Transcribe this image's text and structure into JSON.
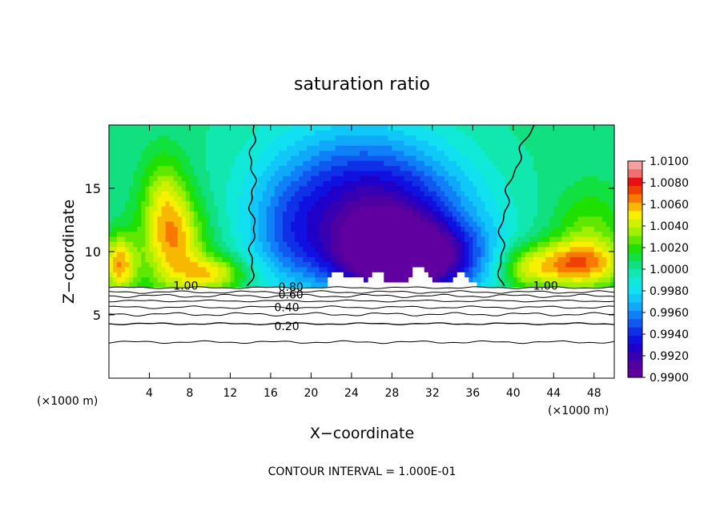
{
  "chart_data": {
    "type": "heatmap",
    "title": "saturation ratio",
    "xlabel": "X−coordinate",
    "ylabel": "Z−coordinate",
    "x_unit_left": "(×1000 m)",
    "x_unit_right": "(×1000 m)",
    "footer": "CONTOUR INTERVAL = 1.000E-01",
    "xlim": [
      0,
      50
    ],
    "ylim": [
      0,
      20
    ],
    "x_ticks": [
      "4",
      "8",
      "12",
      "16",
      "20",
      "24",
      "28",
      "32",
      "36",
      "40",
      "44",
      "48"
    ],
    "x_tick_values": [
      4,
      8,
      12,
      16,
      20,
      24,
      28,
      32,
      36,
      40,
      44,
      48
    ],
    "y_ticks": [
      "5",
      "10",
      "15"
    ],
    "y_tick_values": [
      5,
      10,
      15
    ],
    "colorbar": {
      "min": 0.99,
      "max": 1.01,
      "labels": [
        "1.0100",
        "1.0080",
        "1.0060",
        "1.0040",
        "1.0020",
        "1.0000",
        "0.9980",
        "0.9960",
        "0.9940",
        "0.9920",
        "0.9900"
      ],
      "colors": [
        "#f5a0a0",
        "#f07070",
        "#e81010",
        "#f04000",
        "#f87800",
        "#f8b800",
        "#f8f000",
        "#d0f000",
        "#a0f000",
        "#60e800",
        "#20e000",
        "#10e040",
        "#10e080",
        "#10e8b0",
        "#10e8d8",
        "#10e0f0",
        "#10c8f8",
        "#10a8f8",
        "#1080f8",
        "#1058f0",
        "#1030e8",
        "#1010e0",
        "#2000c8",
        "#3800b0",
        "#5000a0",
        "#6000a0"
      ]
    },
    "contour_labels": [
      {
        "text": "1.00",
        "x": 7.6,
        "z": 7.3
      },
      {
        "text": "0.80",
        "x": 18.0,
        "z": 7.2
      },
      {
        "text": "0.60",
        "x": 18.0,
        "z": 6.6
      },
      {
        "text": "0.40",
        "x": 17.6,
        "z": 5.6
      },
      {
        "text": "0.20",
        "x": 17.6,
        "z": 4.1
      },
      {
        "text": "1.00",
        "x": 43.2,
        "z": 7.3
      }
    ]
  }
}
